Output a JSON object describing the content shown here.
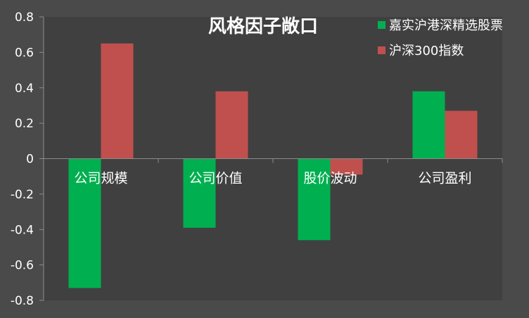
{
  "chart_data": {
    "type": "bar",
    "title": "风格因子敞口",
    "categories": [
      "公司规模",
      "公司价值",
      "股价波动",
      "公司盈利"
    ],
    "series": [
      {
        "name": "嘉实沪港深精选股票",
        "color": "#00b050",
        "values": [
          -0.73,
          -0.39,
          -0.46,
          0.38
        ]
      },
      {
        "name": "沪深300指数",
        "color": "#c0504d",
        "values": [
          0.65,
          0.38,
          -0.09,
          0.27
        ]
      }
    ],
    "ylim": [
      -0.8,
      0.8
    ],
    "yticks": [
      "0.8",
      "0.6",
      "0.4",
      "0.2",
      "0",
      "-0.2",
      "-0.4",
      "-0.6",
      "-0.8"
    ],
    "xlabel": "",
    "ylabel": "",
    "grid": false,
    "legend": "top-right"
  },
  "colors": {
    "background": "#4a4a4a",
    "plot_background": "#404040",
    "axis_line": "#8c8c8c"
  }
}
